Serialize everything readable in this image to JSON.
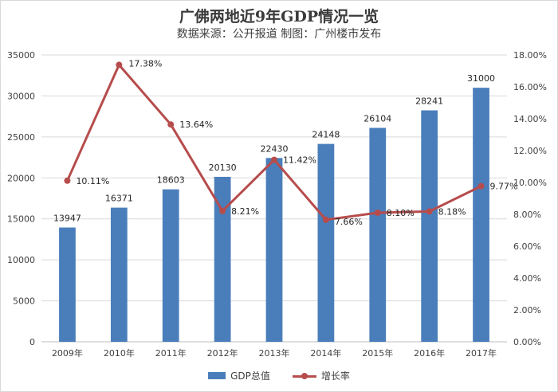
{
  "chart_data": {
    "type": "bar",
    "title": "广佛两地近9年GDP情况一览",
    "subtitle": "数据来源：公开报道 制图：广州楼市发布",
    "categories": [
      "2009年",
      "2010年",
      "2011年",
      "2012年",
      "2013年",
      "2014年",
      "2015年",
      "2016年",
      "2017年"
    ],
    "series": [
      {
        "name": "GDP总值",
        "type": "bar",
        "axis": "left",
        "color": "#4a7ebb",
        "values": [
          13947,
          16371,
          18603,
          20130,
          22430,
          24148,
          26104,
          28241,
          31000
        ],
        "labels": [
          "13947",
          "16371",
          "18603",
          "20130",
          "22430",
          "24148",
          "26104",
          "28241",
          "31000"
        ]
      },
      {
        "name": "增长率",
        "type": "line",
        "axis": "right",
        "color": "#b74c4c",
        "values": [
          10.11,
          17.38,
          13.64,
          8.21,
          11.42,
          7.66,
          8.1,
          8.18,
          9.77
        ],
        "labels": [
          "10.11%",
          "17.38%",
          "13.64%",
          "8.21%",
          "11.42%",
          "7.66%",
          "8.10%",
          "8.18%",
          "9.77%"
        ]
      }
    ],
    "left_axis": {
      "ylim": [
        0,
        35000
      ],
      "ticks": [
        "0",
        "5000",
        "10000",
        "15000",
        "20000",
        "25000",
        "30000",
        "35000"
      ]
    },
    "right_axis": {
      "ylim": [
        0,
        18
      ],
      "ticks": [
        "0.00%",
        "2.00%",
        "4.00%",
        "6.00%",
        "8.00%",
        "10.00%",
        "12.00%",
        "14.00%",
        "16.00%",
        "18.00%"
      ]
    },
    "grid": true,
    "legend_position": "bottom"
  }
}
